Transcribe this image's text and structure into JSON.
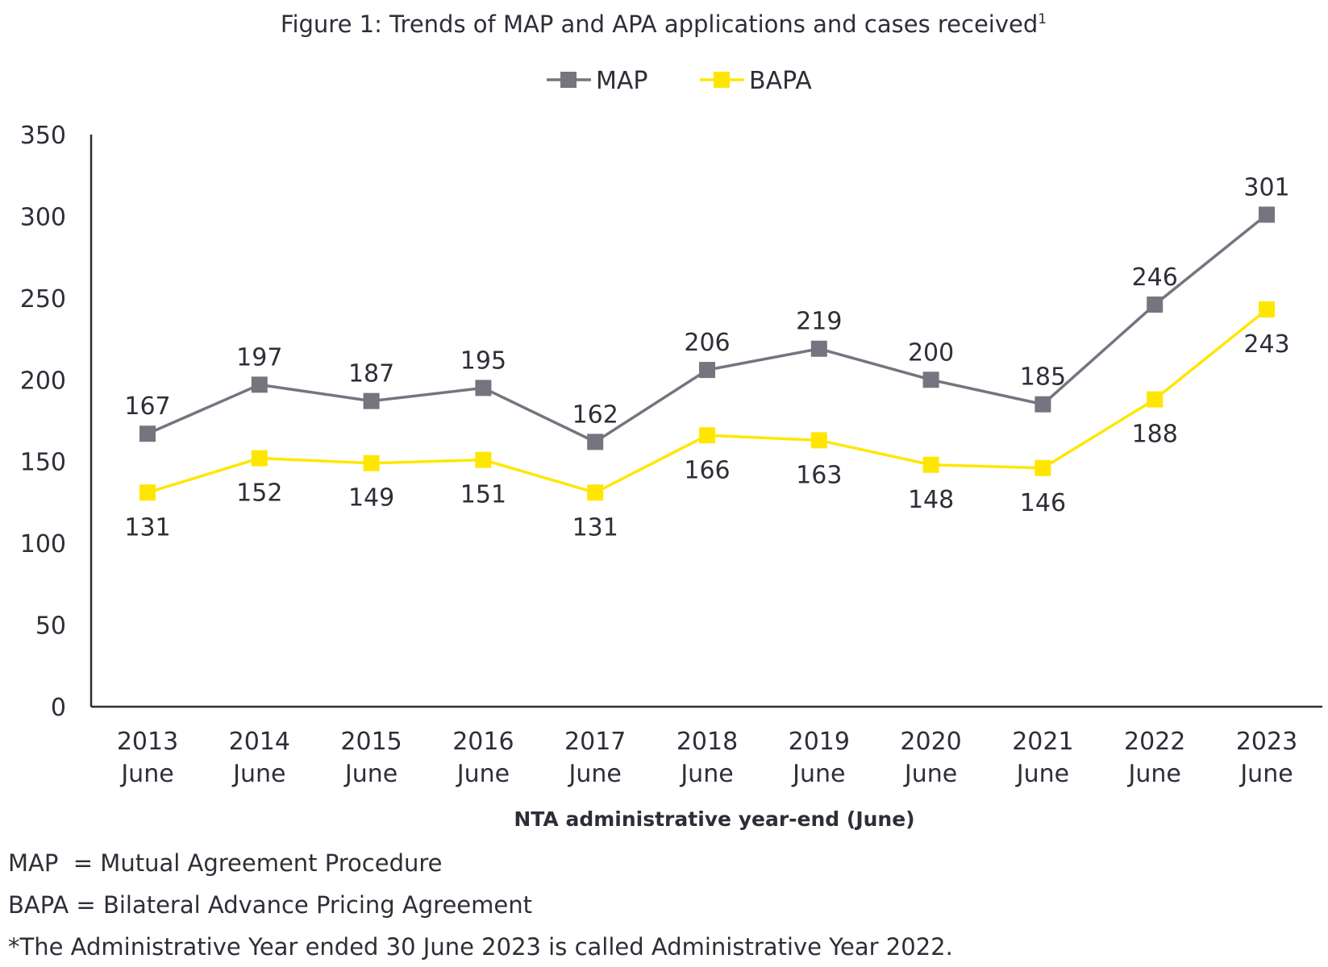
{
  "chart_data": {
    "type": "line",
    "title": "Figure 1: Trends of MAP and APA applications and cases received",
    "title_superscript": "1",
    "categories": [
      [
        "2013",
        "June"
      ],
      [
        "2014",
        "June"
      ],
      [
        "2015",
        "June"
      ],
      [
        "2016",
        "June"
      ],
      [
        "2017",
        "June"
      ],
      [
        "2018",
        "June"
      ],
      [
        "2019",
        "June"
      ],
      [
        "2020",
        "June"
      ],
      [
        "2021",
        "June"
      ],
      [
        "2022",
        "June"
      ],
      [
        "2023",
        "June"
      ]
    ],
    "xlabel": "NTA administrative year-end (June)",
    "ylabel": "",
    "ylim": [
      0,
      350
    ],
    "yticks": [
      0,
      50,
      100,
      150,
      200,
      250,
      300,
      350
    ],
    "grid": false,
    "legend_position": "top-center",
    "series": [
      {
        "name": "MAP",
        "color": "#76747f",
        "marker": "square",
        "label_position": "above",
        "values": [
          167,
          197,
          187,
          195,
          162,
          206,
          219,
          200,
          185,
          246,
          301
        ]
      },
      {
        "name": "BAPA",
        "color": "#ffe600",
        "marker": "square",
        "label_position": "below",
        "values": [
          131,
          152,
          149,
          151,
          131,
          166,
          163,
          148,
          146,
          188,
          243
        ]
      }
    ]
  },
  "footnotes": [
    "MAP  = Mutual Agreement Procedure",
    "BAPA = Bilateral Advance Pricing Agreement",
    "*The Administrative Year ended 30 June 2023 is called Administrative Year 2022."
  ]
}
